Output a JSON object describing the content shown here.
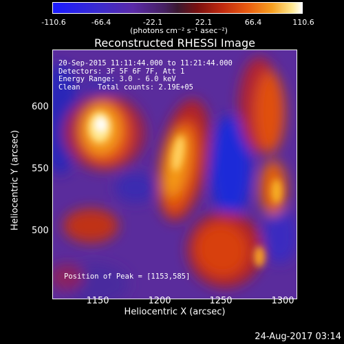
{
  "colorbar": {
    "ticks": [
      "-110.6",
      "-66.4",
      "-22.1",
      "22.1",
      "66.4",
      "110.6"
    ],
    "unit": "(photons cm⁻² s⁻¹ asec⁻²)"
  },
  "title": "Reconstructed RHESSI Image",
  "info": {
    "line1": "20-Sep-2015 11:11:44.000 to 11:21:44.000",
    "line2": "Detectors: 3F 5F 6F 7F, Att 1",
    "line3": "Energy Range: 3.0 - 6.0 keV",
    "line4": "Clean    Total counts: 2.19E+05"
  },
  "peak": "Position of Peak = [1153,585]",
  "axes": {
    "ylabel": "Heliocentric Y (arcsec)",
    "xlabel": "Heliocentric X (arcsec)",
    "yticks": [
      "600",
      "550",
      "500"
    ],
    "xticks": [
      "1150",
      "1200",
      "1250",
      "1300"
    ]
  },
  "footer": {
    "date": "24-Aug-2017 03:14"
  }
}
